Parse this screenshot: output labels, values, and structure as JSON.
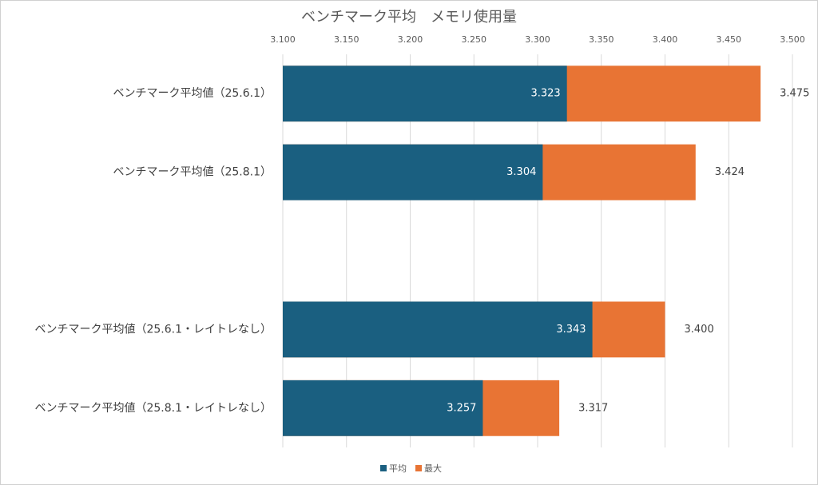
{
  "chart_data": {
    "type": "bar",
    "horizontal": true,
    "title": "ベンチマーク平均　メモリ使用量",
    "categories": [
      "ベンチマーク平均値（25.6.1）",
      "ベンチマーク平均値（25.8.1）",
      null,
      "ベンチマーク平均値（25.6.1・レイトレなし）",
      "ベンチマーク平均値（25.8.1・レイトレなし）"
    ],
    "series": [
      {
        "name": "平均",
        "color": "#1a5f80",
        "values": [
          3.323,
          3.304,
          null,
          3.343,
          3.257
        ],
        "value_labels": [
          "3.323",
          "3.304",
          null,
          "3.343",
          "3.257"
        ]
      },
      {
        "name": "最大",
        "color": "#e87434",
        "values": [
          3.475,
          3.424,
          null,
          3.4,
          3.317
        ],
        "value_labels": [
          "3.475",
          "3.424",
          null,
          "3.400",
          "3.317"
        ]
      }
    ],
    "xlim": [
      3.1,
      3.5
    ],
    "xticks": [
      {
        "value": 3.1,
        "label": "3.100"
      },
      {
        "value": 3.15,
        "label": "3.150"
      },
      {
        "value": 3.2,
        "label": "3.200"
      },
      {
        "value": 3.25,
        "label": "3.250"
      },
      {
        "value": 3.3,
        "label": "3.300"
      },
      {
        "value": 3.35,
        "label": "3.350"
      },
      {
        "value": 3.4,
        "label": "3.400"
      },
      {
        "value": 3.45,
        "label": "3.450"
      },
      {
        "value": 3.5,
        "label": "3.500"
      }
    ],
    "grid": true,
    "legend": "bottom"
  }
}
